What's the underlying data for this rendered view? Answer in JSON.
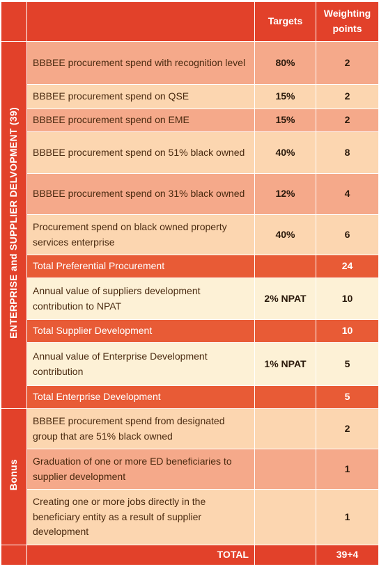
{
  "header": {
    "targets_label": "Targets",
    "weighting_label": "Weighting points"
  },
  "sections": {
    "esd_label": "ENTERPRISE and SUPPLIER DELVOPMENT (39)",
    "bonus_label": "Bonus"
  },
  "rows": [
    {
      "description": "BBBEE procurement spend with recognition level",
      "target": "80%",
      "points": "2"
    },
    {
      "description": "BBBEE procurement spend on QSE",
      "target": "15%",
      "points": "2"
    },
    {
      "description": "BBBEE procurement spend on EME",
      "target": "15%",
      "points": "2"
    },
    {
      "description": "BBBEE procurement spend on 51% black owned",
      "target": "40%",
      "points": "8"
    },
    {
      "description": "BBBEE procurement spend on 31% black owned",
      "target": "12%",
      "points": "4"
    },
    {
      "description": "Procurement spend on black owned property services enterprise",
      "target": "40%",
      "points": "6"
    },
    {
      "description": "Total Preferential Procurement",
      "target": "",
      "points": "24"
    },
    {
      "description": "Annual value of suppliers development contribution to NPAT",
      "target": "2% NPAT",
      "points": "10"
    },
    {
      "description": "Total Supplier Development",
      "target": "",
      "points": "10"
    },
    {
      "description": "Annual value of Enterprise Development contribution",
      "target": "1% NPAT",
      "points": "5"
    },
    {
      "description": "Total Enterprise Development",
      "target": "",
      "points": "5"
    },
    {
      "description": "BBBEE procurement spend from designated group that are 51% black owned",
      "target": "",
      "points": "2"
    },
    {
      "description": "Graduation of one or more ED beneficiaries to supplier development",
      "target": "",
      "points": "1"
    },
    {
      "description": "Creating one or more jobs directly in the beneficiary entity as a result of supplier development",
      "target": "",
      "points": "1"
    }
  ],
  "total": {
    "label": "TOTAL",
    "points": "39+4"
  },
  "colors": {
    "header_red": "#e2412a",
    "total_orange": "#e85b36",
    "row_salmon": "#f5a98a",
    "row_peach": "#fcd6b0",
    "row_cream": "#fdf1d6"
  }
}
